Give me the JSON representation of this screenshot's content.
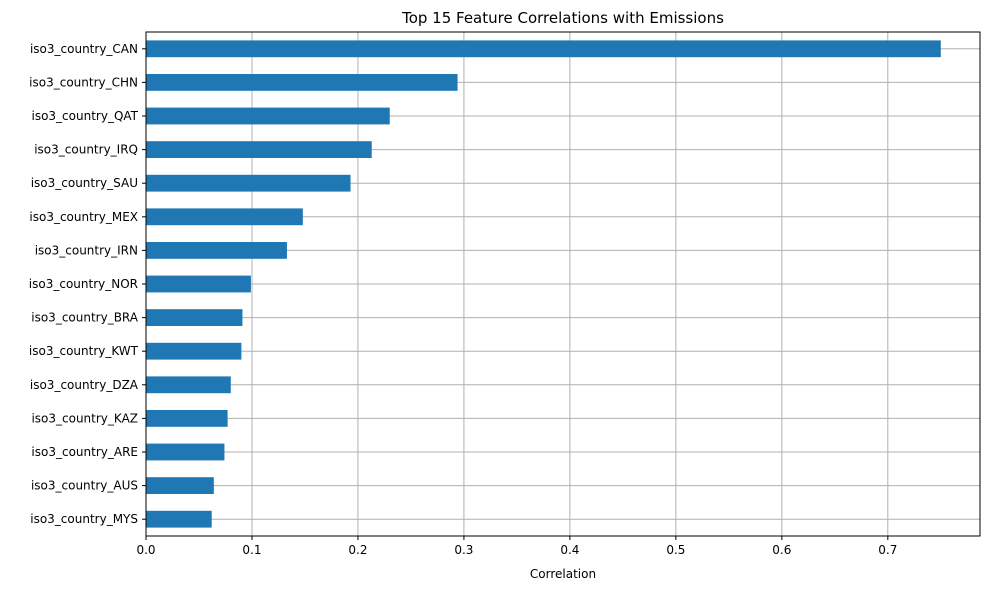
{
  "chart_data": {
    "type": "bar",
    "orientation": "horizontal",
    "title": "Top 15 Feature Correlations with Emissions",
    "xlabel": "Correlation",
    "ylabel": "",
    "xlim": [
      0,
      0.787
    ],
    "x_ticks": [
      "0.0",
      "0.1",
      "0.2",
      "0.3",
      "0.4",
      "0.5",
      "0.6",
      "0.7"
    ],
    "x_tick_values": [
      0,
      0.1,
      0.2,
      0.3,
      0.4,
      0.5,
      0.6,
      0.7
    ],
    "grid": true,
    "bar_color": "#1f77b4",
    "categories": [
      "iso3_country_CAN",
      "iso3_country_CHN",
      "iso3_country_QAT",
      "iso3_country_IRQ",
      "iso3_country_SAU",
      "iso3_country_MEX",
      "iso3_country_IRN",
      "iso3_country_NOR",
      "iso3_country_BRA",
      "iso3_country_KWT",
      "iso3_country_DZA",
      "iso3_country_KAZ",
      "iso3_country_ARE",
      "iso3_country_AUS",
      "iso3_country_MYS"
    ],
    "values": [
      0.75,
      0.294,
      0.23,
      0.213,
      0.193,
      0.148,
      0.133,
      0.099,
      0.091,
      0.09,
      0.08,
      0.077,
      0.074,
      0.064,
      0.062
    ]
  }
}
